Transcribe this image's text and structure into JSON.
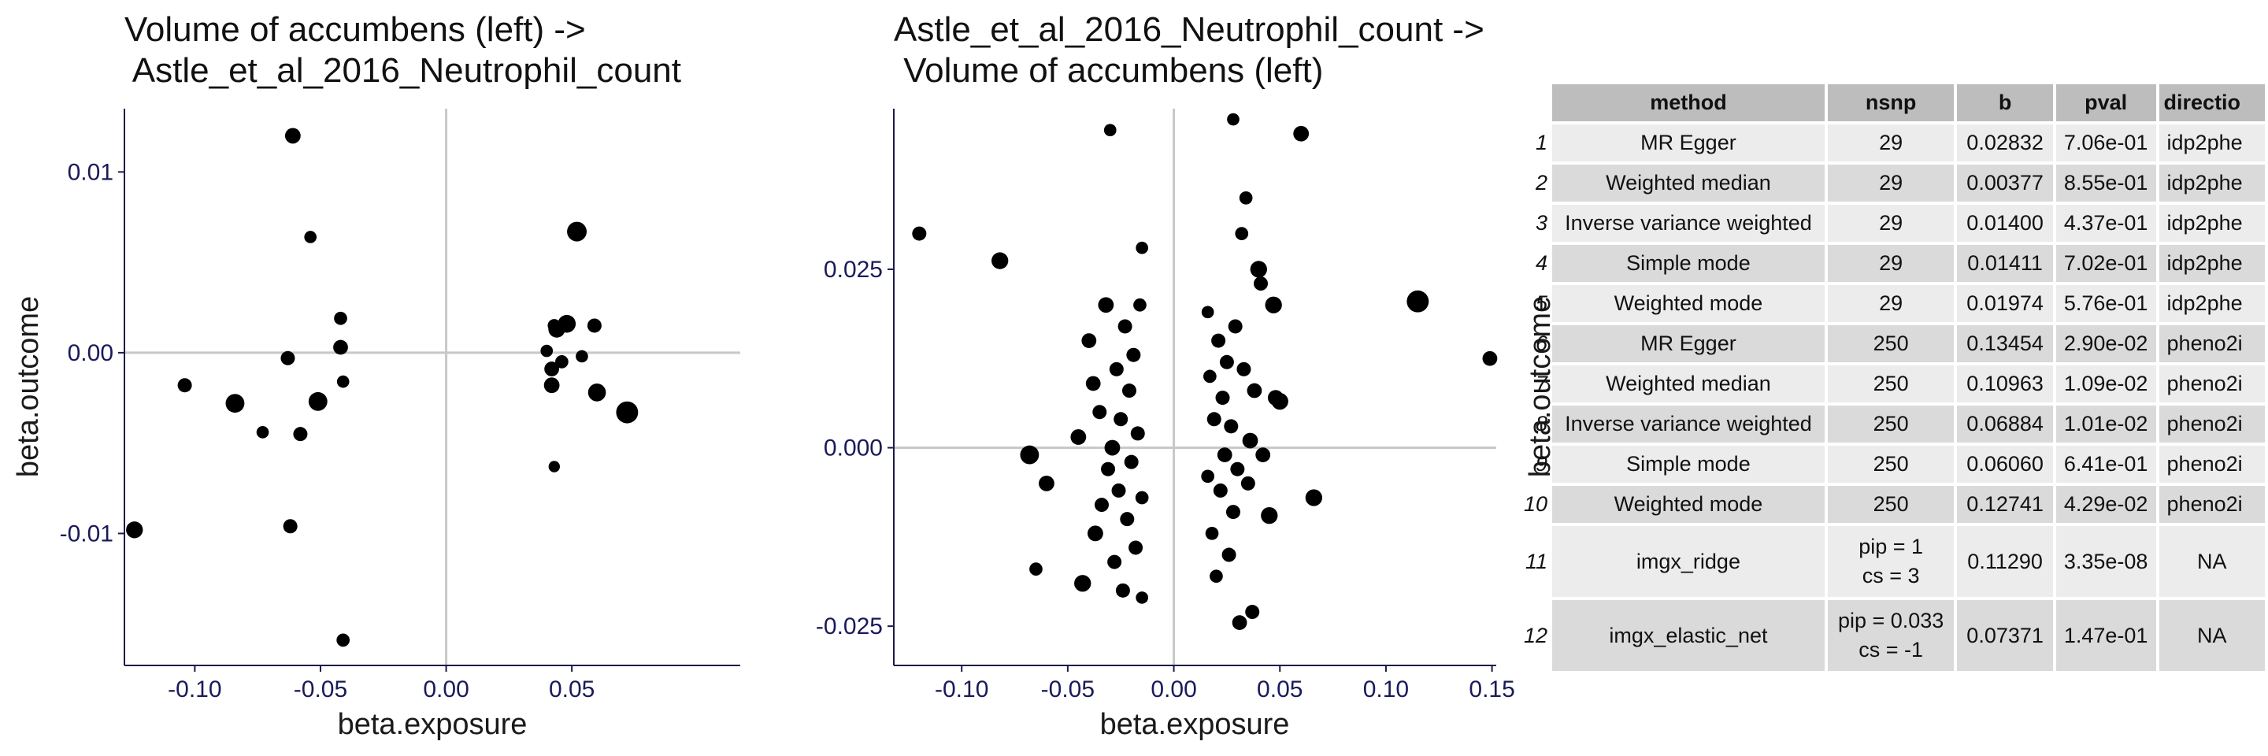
{
  "panels": [
    {
      "title_line1": "Volume of accumbens (left) ->",
      "title_line2": " Astle_et_al_2016_Neutrophil_count",
      "xlabel": "beta.exposure",
      "ylabel": "beta.outcome",
      "xticks": [
        "-0.10",
        "-0.05",
        "0.00",
        "0.05"
      ],
      "yticks": [
        "0.01",
        "0.00",
        "-0.01"
      ]
    },
    {
      "title_line1": "Astle_et_al_2016_Neutrophil_count ->",
      "title_line2": " Volume of accumbens (left)",
      "xlabel": "beta.exposure",
      "ylabel": "beta.outcome",
      "xticks": [
        "-0.10",
        "-0.05",
        "0.00",
        "0.05",
        "0.10",
        "0.15"
      ],
      "yticks": [
        "0.025",
        "0.000",
        "-0.025"
      ]
    }
  ],
  "chart_data": [
    {
      "type": "scatter",
      "title": "Volume of accumbens (left) ->\n Astle_et_al_2016_Neutrophil_count",
      "xlabel": "beta.exposure",
      "ylabel": "beta.outcome",
      "xlim": [
        -0.128,
        0.117
      ],
      "ylim": [
        -0.0173,
        0.0135
      ],
      "reference_lines": {
        "x": 0,
        "y": 0
      },
      "grid": false,
      "points": [
        {
          "x": -0.124,
          "y": -0.0098,
          "w": 2
        },
        {
          "x": -0.104,
          "y": -0.0018,
          "w": 1
        },
        {
          "x": -0.084,
          "y": -0.0028,
          "w": 3
        },
        {
          "x": -0.073,
          "y": -0.0044,
          "w": 0.5
        },
        {
          "x": -0.063,
          "y": -0.0003,
          "w": 1
        },
        {
          "x": -0.062,
          "y": -0.0096,
          "w": 1
        },
        {
          "x": -0.061,
          "y": 0.012,
          "w": 1.5
        },
        {
          "x": -0.058,
          "y": -0.0045,
          "w": 1
        },
        {
          "x": -0.054,
          "y": 0.0064,
          "w": 0.5
        },
        {
          "x": -0.051,
          "y": -0.0027,
          "w": 3
        },
        {
          "x": -0.042,
          "y": 0.0019,
          "w": 0.7
        },
        {
          "x": -0.042,
          "y": 0.0003,
          "w": 1.2
        },
        {
          "x": -0.041,
          "y": -0.0016,
          "w": 0.5
        },
        {
          "x": -0.041,
          "y": -0.0159,
          "w": 0.7
        },
        {
          "x": 0.04,
          "y": 0.0001,
          "w": 0.5
        },
        {
          "x": 0.042,
          "y": -0.0009,
          "w": 1.2
        },
        {
          "x": 0.042,
          "y": -0.0018,
          "w": 1.5
        },
        {
          "x": 0.043,
          "y": 0.0015,
          "w": 0.7
        },
        {
          "x": 0.043,
          "y": -0.0063,
          "w": 0.3
        },
        {
          "x": 0.044,
          "y": 0.0013,
          "w": 2
        },
        {
          "x": 0.046,
          "y": -0.0005,
          "w": 0.7
        },
        {
          "x": 0.048,
          "y": 0.0016,
          "w": 2.5
        },
        {
          "x": 0.052,
          "y": 0.0067,
          "w": 3.5
        },
        {
          "x": 0.054,
          "y": -0.0002,
          "w": 0.5
        },
        {
          "x": 0.059,
          "y": 0.0015,
          "w": 1
        },
        {
          "x": 0.06,
          "y": -0.0022,
          "w": 2.5
        },
        {
          "x": 0.072,
          "y": -0.0033,
          "w": 5
        }
      ]
    },
    {
      "type": "scatter",
      "title": "Astle_et_al_2016_Neutrophil_count ->\n Volume of accumbens (left)",
      "xlabel": "beta.exposure",
      "ylabel": "beta.outcome",
      "xlim": [
        -0.132,
        0.152
      ],
      "ylim": [
        -0.0305,
        0.0475
      ],
      "reference_lines": {
        "x": 0,
        "y": 0
      },
      "grid": false,
      "points": [
        {
          "x": -0.12,
          "y": 0.03,
          "w": 1
        },
        {
          "x": -0.082,
          "y": 0.0262,
          "w": 2
        },
        {
          "x": -0.068,
          "y": -0.001,
          "w": 3
        },
        {
          "x": -0.065,
          "y": -0.017,
          "w": 0.7
        },
        {
          "x": -0.06,
          "y": -0.005,
          "w": 1.5
        },
        {
          "x": -0.045,
          "y": 0.0015,
          "w": 1.5
        },
        {
          "x": -0.043,
          "y": -0.019,
          "w": 2
        },
        {
          "x": -0.04,
          "y": 0.015,
          "w": 1.2
        },
        {
          "x": -0.038,
          "y": 0.009,
          "w": 1.2
        },
        {
          "x": -0.037,
          "y": -0.012,
          "w": 1.5
        },
        {
          "x": -0.035,
          "y": 0.005,
          "w": 1
        },
        {
          "x": -0.034,
          "y": -0.008,
          "w": 1
        },
        {
          "x": -0.032,
          "y": 0.02,
          "w": 1.5
        },
        {
          "x": -0.031,
          "y": -0.003,
          "w": 1
        },
        {
          "x": -0.03,
          "y": 0.0445,
          "w": 0.5
        },
        {
          "x": -0.029,
          "y": 0.0,
          "w": 1.5
        },
        {
          "x": -0.028,
          "y": -0.016,
          "w": 1
        },
        {
          "x": -0.027,
          "y": 0.011,
          "w": 1
        },
        {
          "x": -0.026,
          "y": -0.006,
          "w": 1
        },
        {
          "x": -0.025,
          "y": 0.004,
          "w": 1
        },
        {
          "x": -0.024,
          "y": -0.02,
          "w": 1
        },
        {
          "x": -0.023,
          "y": 0.017,
          "w": 1
        },
        {
          "x": -0.022,
          "y": -0.01,
          "w": 1
        },
        {
          "x": -0.021,
          "y": 0.008,
          "w": 1
        },
        {
          "x": -0.02,
          "y": -0.002,
          "w": 1
        },
        {
          "x": -0.019,
          "y": 0.013,
          "w": 1
        },
        {
          "x": -0.018,
          "y": -0.014,
          "w": 1
        },
        {
          "x": -0.017,
          "y": 0.002,
          "w": 1
        },
        {
          "x": -0.016,
          "y": 0.02,
          "w": 0.7
        },
        {
          "x": -0.015,
          "y": 0.028,
          "w": 0.5
        },
        {
          "x": -0.015,
          "y": -0.007,
          "w": 0.7
        },
        {
          "x": -0.015,
          "y": -0.021,
          "w": 0.5
        },
        {
          "x": 0.016,
          "y": 0.019,
          "w": 0.5
        },
        {
          "x": 0.016,
          "y": -0.004,
          "w": 0.7
        },
        {
          "x": 0.017,
          "y": 0.01,
          "w": 0.7
        },
        {
          "x": 0.018,
          "y": -0.012,
          "w": 0.7
        },
        {
          "x": 0.019,
          "y": 0.004,
          "w": 1
        },
        {
          "x": 0.02,
          "y": -0.018,
          "w": 0.7
        },
        {
          "x": 0.021,
          "y": 0.015,
          "w": 1
        },
        {
          "x": 0.022,
          "y": -0.006,
          "w": 1
        },
        {
          "x": 0.023,
          "y": 0.007,
          "w": 1
        },
        {
          "x": 0.024,
          "y": -0.001,
          "w": 1.2
        },
        {
          "x": 0.025,
          "y": 0.012,
          "w": 1
        },
        {
          "x": 0.026,
          "y": -0.015,
          "w": 1
        },
        {
          "x": 0.027,
          "y": 0.003,
          "w": 1
        },
        {
          "x": 0.028,
          "y": 0.046,
          "w": 0.5
        },
        {
          "x": 0.028,
          "y": -0.009,
          "w": 1
        },
        {
          "x": 0.029,
          "y": 0.017,
          "w": 1
        },
        {
          "x": 0.03,
          "y": -0.003,
          "w": 1
        },
        {
          "x": 0.031,
          "y": -0.0245,
          "w": 1.2
        },
        {
          "x": 0.032,
          "y": 0.03,
          "w": 0.7
        },
        {
          "x": 0.033,
          "y": 0.011,
          "w": 1
        },
        {
          "x": 0.034,
          "y": 0.035,
          "w": 0.7
        },
        {
          "x": 0.035,
          "y": -0.005,
          "w": 1
        },
        {
          "x": 0.036,
          "y": 0.001,
          "w": 1.5
        },
        {
          "x": 0.037,
          "y": -0.023,
          "w": 1
        },
        {
          "x": 0.038,
          "y": 0.008,
          "w": 1.2
        },
        {
          "x": 0.04,
          "y": 0.025,
          "w": 2
        },
        {
          "x": 0.041,
          "y": 0.023,
          "w": 1
        },
        {
          "x": 0.042,
          "y": -0.001,
          "w": 1.2
        },
        {
          "x": 0.045,
          "y": -0.0095,
          "w": 2
        },
        {
          "x": 0.047,
          "y": 0.02,
          "w": 2
        },
        {
          "x": 0.048,
          "y": 0.007,
          "w": 1.5
        },
        {
          "x": 0.05,
          "y": 0.0065,
          "w": 2
        },
        {
          "x": 0.06,
          "y": 0.044,
          "w": 1.5
        },
        {
          "x": 0.066,
          "y": -0.007,
          "w": 2
        },
        {
          "x": 0.115,
          "y": 0.0205,
          "w": 5
        },
        {
          "x": 0.149,
          "y": 0.0125,
          "w": 1.2
        }
      ]
    }
  ],
  "table": {
    "columns": [
      "method",
      "nsnp",
      "b",
      "pval",
      "directio"
    ],
    "rows": [
      {
        "n": "1",
        "method": "MR Egger",
        "nsnp": "29",
        "b": "0.02832",
        "pval": "7.06e-01",
        "dir": "idp2phe"
      },
      {
        "n": "2",
        "method": "Weighted median",
        "nsnp": "29",
        "b": "0.00377",
        "pval": "8.55e-01",
        "dir": "idp2phe"
      },
      {
        "n": "3",
        "method": "Inverse variance weighted",
        "nsnp": "29",
        "b": "0.01400",
        "pval": "4.37e-01",
        "dir": "idp2phe"
      },
      {
        "n": "4",
        "method": "Simple mode",
        "nsnp": "29",
        "b": "0.01411",
        "pval": "7.02e-01",
        "dir": "idp2phe"
      },
      {
        "n": "5",
        "method": "Weighted mode",
        "nsnp": "29",
        "b": "0.01974",
        "pval": "5.76e-01",
        "dir": "idp2phe"
      },
      {
        "n": "6",
        "method": "MR Egger",
        "nsnp": "250",
        "b": "0.13454",
        "pval": "2.90e-02",
        "dir": "pheno2i"
      },
      {
        "n": "7",
        "method": "Weighted median",
        "nsnp": "250",
        "b": "0.10963",
        "pval": "1.09e-02",
        "dir": "pheno2i"
      },
      {
        "n": "8",
        "method": "Inverse variance weighted",
        "nsnp": "250",
        "b": "0.06884",
        "pval": "1.01e-02",
        "dir": "pheno2i"
      },
      {
        "n": "9",
        "method": "Simple mode",
        "nsnp": "250",
        "b": "0.06060",
        "pval": "6.41e-01",
        "dir": "pheno2i"
      },
      {
        "n": "10",
        "method": "Weighted mode",
        "nsnp": "250",
        "b": "0.12741",
        "pval": "4.29e-02",
        "dir": "pheno2i"
      },
      {
        "n": "11",
        "method": "imgx_ridge",
        "nsnp_line1": "pip = 1",
        "nsnp_line2": "cs = 3",
        "b": "0.11290",
        "pval": "3.35e-08",
        "dir": "NA"
      },
      {
        "n": "12",
        "method": "imgx_elastic_net",
        "nsnp_line1": "pip = 0.033",
        "nsnp_line2": "cs = -1",
        "b": "0.07371",
        "pval": "1.47e-01",
        "dir": "NA"
      }
    ]
  },
  "colors": {
    "point": "#000000",
    "refline": "#c8c8c8",
    "axis": "#1a1a4a",
    "header_bg": "#bdbdbd",
    "row_light": "#ececec",
    "row_dark": "#dadada"
  }
}
